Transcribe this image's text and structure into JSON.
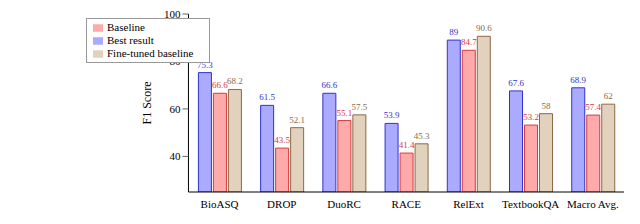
{
  "chart_data": {
    "type": "bar",
    "categories": [
      "BioASQ",
      "DROP",
      "DuoRC",
      "RACE",
      "RelExt",
      "TextbookQA",
      "Macro Avg."
    ],
    "y_label": "F1 Score",
    "ylim": [
      25,
      100
    ],
    "yticks": [
      40,
      60,
      80,
      100
    ],
    "legend": "upper left",
    "data_labels": true,
    "series": [
      {
        "name": "Best result",
        "color": "#3333cc",
        "values": [
          75.3,
          61.5,
          66.6,
          53.9,
          89,
          67.6,
          68.9
        ]
      },
      {
        "name": "Baseline",
        "color": "#d93a3a",
        "values": [
          66.6,
          43.5,
          55.1,
          41.4,
          84.7,
          53.2,
          57.4
        ]
      },
      {
        "name": "Fine-tuned baseline",
        "color": "#8c6a45",
        "values": [
          68.2,
          52.1,
          57.5,
          45.3,
          90.6,
          58,
          62
        ]
      }
    ]
  }
}
